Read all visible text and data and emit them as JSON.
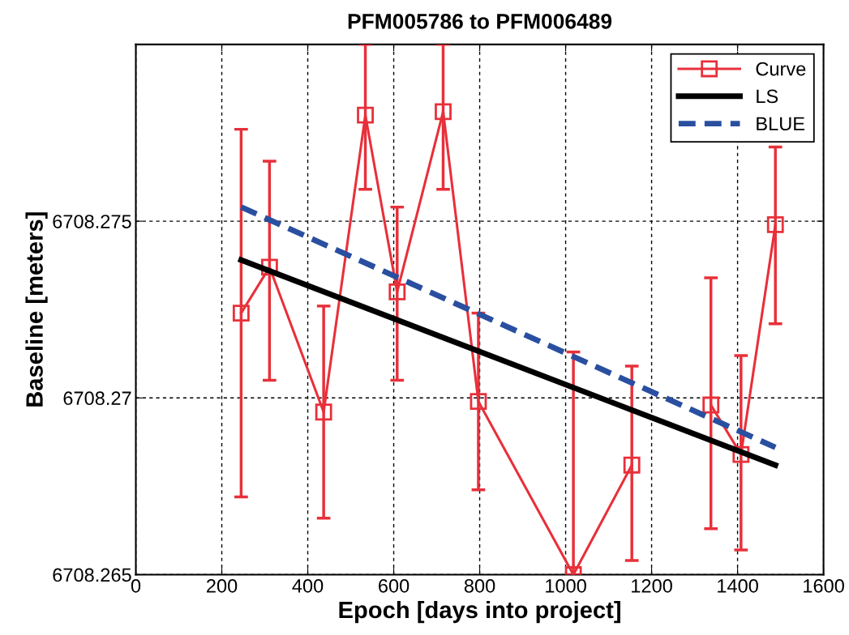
{
  "chart_data": {
    "type": "line",
    "title": "PFM005786 to PFM006489",
    "xlabel": "Epoch [days into project]",
    "ylabel": "Baseline [meters]",
    "xlim": [
      0,
      1600
    ],
    "xticks": [
      0,
      200,
      400,
      600,
      800,
      1000,
      1200,
      1400,
      1600
    ],
    "ylim": [
      6708.265,
      6708.28
    ],
    "yticks": [
      6708.265,
      6708.27,
      6708.275
    ],
    "grid": true,
    "legend": "top right",
    "series": [
      {
        "name": "Curve",
        "color": "#e8303a",
        "marker": "square",
        "line_style": "solid",
        "x": [
          245,
          311,
          437,
          534,
          608,
          715,
          797,
          1018,
          1154,
          1247,
          1338,
          1408,
          1488
        ],
        "values": [
          6708.2724,
          6708.2737,
          6708.2696,
          6708.278,
          6708.273,
          6708.2781,
          6708.2699,
          6708.265,
          6708.2681,
          null,
          6708.2698,
          6708.2684,
          6708.2749
        ],
        "errors": [
          [
            6708.2672,
            6708.2776
          ],
          [
            6708.2705,
            6708.2767
          ],
          [
            6708.2666,
            6708.2726
          ],
          [
            6708.2759,
            6708.28
          ],
          [
            6708.2705,
            6708.2754
          ],
          [
            6708.2759,
            6708.28
          ],
          [
            6708.2674,
            6708.2724
          ],
          [
            6708.265,
            6708.2713
          ],
          [
            6708.2654,
            6708.2709
          ],
          null,
          [
            6708.2663,
            6708.2734
          ],
          [
            6708.2657,
            6708.2712
          ],
          [
            6708.2721,
            6708.2771
          ]
        ]
      },
      {
        "name": "LS",
        "color": "#000000",
        "marker": "none",
        "line_style": "solid",
        "x": [
          245,
          1488
        ],
        "values": [
          6708.2739,
          6708.2681
        ]
      },
      {
        "name": "BLUE",
        "color": "#2a4fa0",
        "marker": "none",
        "line_style": "dashed",
        "x": [
          245,
          1488
        ],
        "values": [
          6708.2754,
          6708.2686
        ]
      }
    ]
  }
}
